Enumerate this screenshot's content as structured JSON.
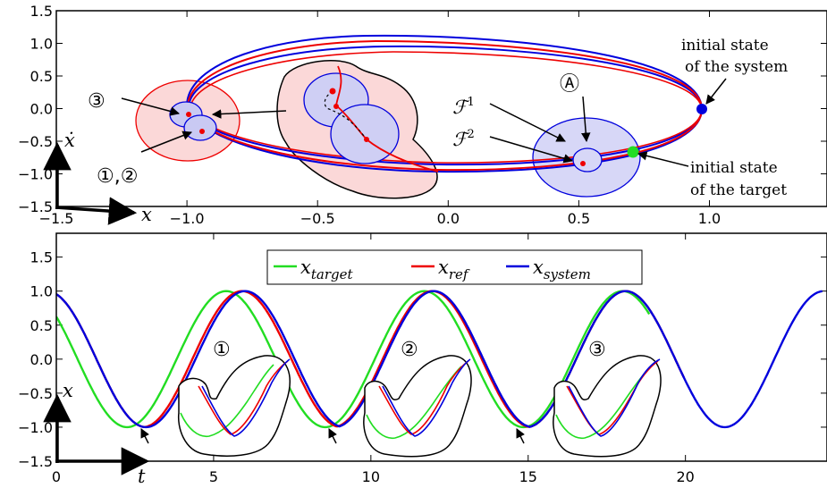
{
  "chart_data": [
    {
      "type": "line",
      "panel": "phase-portrait",
      "title": "",
      "xlabel": "x",
      "ylabel": "ẋ",
      "xlim": [
        -1.5,
        1.45
      ],
      "ylim": [
        -1.5,
        1.5
      ],
      "xticks": [
        "−1.5",
        "−1.0",
        "−0.5",
        "0.0",
        "0.5",
        "1.0"
      ],
      "yticks": [
        "−1.5",
        "−1.0",
        "−0.5",
        "0.0",
        "0.5",
        "1.0",
        "1.5"
      ],
      "series": [
        {
          "color": "#0000dd",
          "values_description": "system trajectory loops (two near-elliptical orbits)"
        },
        {
          "color": "#ee0000",
          "values_description": "reference trajectory ellipse"
        }
      ],
      "points": {
        "system_initial": {
          "x": 1.0,
          "y": 0.0,
          "color": "#0000dd"
        },
        "target_initial": {
          "x": 0.73,
          "y": -0.63,
          "color": "#22dd22"
        }
      },
      "annotations": {
        "system_initial_label_line1": "initial state",
        "system_initial_label_line2": "of the system",
        "target_initial_label_line1": "initial state",
        "target_initial_label_line2": "of the target",
        "marker_3": "③",
        "marker_12": "①,②",
        "marker_A": "Ⓐ",
        "F1": "ℱ",
        "F1_sup": "1",
        "F2": "ℱ",
        "F2_sup": "2"
      }
    },
    {
      "type": "line",
      "panel": "time-series",
      "title": "",
      "xlabel": "t",
      "ylabel": "x",
      "xlim": [
        0,
        24.5
      ],
      "ylim": [
        -1.5,
        1.85
      ],
      "xticks": [
        "0",
        "5",
        "10",
        "15",
        "20"
      ],
      "yticks": [
        "−1.5",
        "−1.0",
        "−0.5",
        "0.0",
        "0.5",
        "1.0",
        "1.5"
      ],
      "legend": {
        "placement": "top-center",
        "entries": [
          {
            "name": "x",
            "sub": "target",
            "color": "#22dd22"
          },
          {
            "name": "x",
            "sub": "ref",
            "color": "#ee0000"
          },
          {
            "name": "x",
            "sub": "system",
            "color": "#0000dd"
          }
        ]
      },
      "series": [
        {
          "name": "x_target",
          "color": "#22dd22",
          "period": 6.3,
          "peaks_t": [
            5.4,
            11.7,
            18.0
          ]
        },
        {
          "name": "x_ref",
          "color": "#ee0000",
          "period": 6.3,
          "peaks_t": [
            5.9,
            11.95,
            18.1
          ]
        },
        {
          "name": "x_system",
          "color": "#0000dd",
          "period": 6.3,
          "peaks_t": [
            6.0,
            12.0,
            18.1,
            24.4
          ]
        }
      ],
      "annotations": {
        "marker_1": "①",
        "marker_2": "②",
        "marker_3": "③"
      }
    }
  ],
  "colors": {
    "target": "#22dd22",
    "ref": "#ee0000",
    "system": "#0000dd",
    "fill_red": "#fbd8d8",
    "fill_blue": "#d7d7f7"
  }
}
